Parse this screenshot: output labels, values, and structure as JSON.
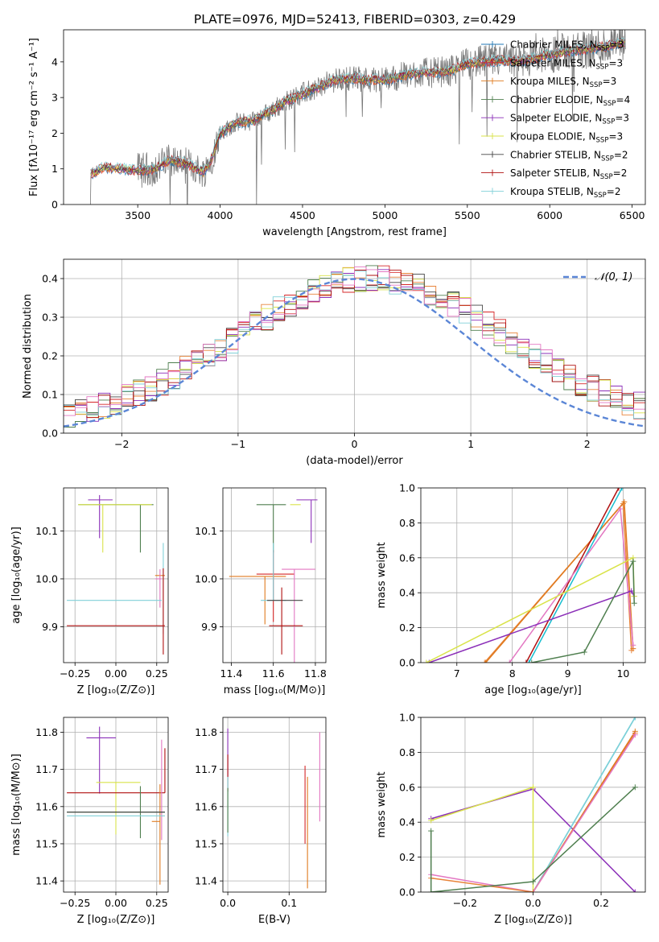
{
  "figure": {
    "title": "PLATE=0976, MJD=52413, FIBERID=0303, z=0.429"
  },
  "legend": {
    "spectrum_entries": [
      {
        "label": "Chabrier MILES, N",
        "sub": "SSP",
        "suffix": "=3",
        "color": "#1f77b4"
      },
      {
        "label": "Salpeter MILES, N",
        "sub": "SSP",
        "suffix": "=3",
        "color": "#d62728"
      },
      {
        "label": "Kroupa MILES, N",
        "sub": "SSP",
        "suffix": "=3",
        "color": "#e07b20"
      },
      {
        "label": "Chabrier ELODIE, N",
        "sub": "SSP",
        "suffix": "=4",
        "color": "#4f7f4f"
      },
      {
        "label": "Salpeter ELODIE, N",
        "sub": "SSP",
        "suffix": "=3",
        "color": "#8b2fb8"
      },
      {
        "label": "Kroupa ELODIE, N",
        "sub": "SSP",
        "suffix": "=3",
        "color": "#d9e34a"
      },
      {
        "label": "Chabrier STELIB, N",
        "sub": "SSP",
        "suffix": "=2",
        "color": "#444444"
      },
      {
        "label": "Salpeter STELIB, N",
        "sub": "SSP",
        "suffix": "=2",
        "color": "#b01010"
      },
      {
        "label": "Kroupa STELIB, N",
        "sub": "SSP",
        "suffix": "=2",
        "color": "#80d0d8"
      }
    ],
    "normal_label": "𝒩(0, 1)",
    "normal_color": "#5b86d6"
  },
  "series_colors": [
    "#e8843a",
    "#d62728",
    "#e07b20",
    "#4f7f4f",
    "#8b2fb8",
    "#d9e34a",
    "#444444",
    "#b01010",
    "#80d0d8",
    "#e377c2",
    "#17becf"
  ],
  "chart_data": [
    {
      "id": "spectrum",
      "type": "line",
      "xlabel": "wavelength [Angstrom, rest frame]",
      "ylabel": "Flux [fλ10⁻¹⁷ erg cm⁻² s⁻¹ A⁻¹]",
      "xlim": [
        3050,
        6580
      ],
      "ylim": [
        0,
        4.9
      ],
      "xticks": [
        "3500",
        "4000",
        "4500",
        "5000",
        "5500",
        "6000",
        "6500"
      ],
      "xtick_values": [
        3500,
        4000,
        4500,
        5000,
        5500,
        6000,
        6500
      ],
      "yticks": [
        "0",
        "1",
        "2",
        "3",
        "4"
      ],
      "ytick_values": [
        0,
        1,
        2,
        3,
        4
      ],
      "grid": false,
      "legend_position": "top-right",
      "model_continuum": {
        "x": [
          3210,
          3300,
          3400,
          3500,
          3600,
          3700,
          3800,
          3900,
          3950,
          4000,
          4100,
          4200,
          4300,
          4400,
          4500,
          4600,
          4700,
          4800,
          4900,
          5000,
          5100,
          5200,
          5300,
          5400,
          5500,
          5600,
          5700,
          5800,
          5900,
          6000,
          6100,
          6200,
          6300,
          6400,
          6450
        ],
        "y": [
          0.85,
          1.05,
          1.0,
          0.95,
          1.0,
          1.25,
          1.15,
          0.9,
          1.3,
          2.0,
          2.3,
          2.35,
          2.6,
          2.9,
          3.1,
          3.3,
          3.5,
          3.55,
          3.5,
          3.5,
          3.6,
          3.7,
          3.7,
          3.75,
          3.95,
          4.0,
          4.05,
          4.0,
          4.1,
          4.2,
          4.3,
          4.35,
          4.4,
          4.5,
          4.55
        ]
      }
    },
    {
      "id": "residuals",
      "type": "line",
      "xlabel": "(data-model)/error",
      "ylabel": "Normed distribution",
      "xlim": [
        -2.5,
        2.5
      ],
      "ylim": [
        0,
        0.45
      ],
      "xticks": [
        "−2",
        "−1",
        "0",
        "1",
        "2"
      ],
      "xtick_values": [
        -2,
        -1,
        0,
        1,
        2
      ],
      "yticks": [
        "0.0",
        "0.1",
        "0.2",
        "0.3",
        "0.4"
      ],
      "ytick_values": [
        0,
        0.1,
        0.2,
        0.3,
        0.4
      ],
      "grid": true,
      "legend_position": "top-right",
      "normal_mu": 0,
      "normal_sigma": 1,
      "histogram_bins": [
        -2.5,
        2.5,
        50
      ]
    },
    {
      "id": "age_vs_Z",
      "type": "scatter",
      "xlabel": "Z [log₁₀(Z/Z⊙)]",
      "ylabel": "age  [log₁₀(age/yr)]",
      "xlim": [
        -0.32,
        0.32
      ],
      "ylim": [
        9.825,
        10.19
      ],
      "xticks": [
        "−0.25",
        "0.00",
        "0.25"
      ],
      "xtick_values": [
        -0.25,
        0,
        0.25
      ],
      "yticks": [
        "9.9",
        "10.0",
        "10.1"
      ],
      "ytick_values": [
        9.9,
        10.0,
        10.1
      ],
      "grid": true,
      "points": [
        {
          "x": -0.1,
          "y": 10.165,
          "xl": 0.07,
          "xh": 0.08,
          "yl": 0.08,
          "yh": 0.01,
          "c": 4
        },
        {
          "x": 0.15,
          "y": 10.155,
          "xl": 0.38,
          "xh": 0.08,
          "yl": 0.1,
          "yh": 0.0,
          "c": 3
        },
        {
          "x": -0.08,
          "y": 10.155,
          "xl": 0.15,
          "xh": 0.3,
          "yl": 0.1,
          "yh": 0.0,
          "c": 5
        },
        {
          "x": 0.28,
          "y": 10.007,
          "xl": 0.04,
          "xh": 0.02,
          "yl": 0.0,
          "yh": 0.0,
          "c": 2
        },
        {
          "x": 0.27,
          "y": 10.0,
          "xl": 0.03,
          "xh": 0.01,
          "yl": 0.06,
          "yh": 0.02,
          "c": 9
        },
        {
          "x": 0.0,
          "y": 9.955,
          "xl": 0.3,
          "xh": 0.28,
          "yl": 0.0,
          "yh": 0.0,
          "c": 8
        },
        {
          "x": 0.29,
          "y": 9.955,
          "xl": 0.0,
          "xh": 0.0,
          "yl": 0.07,
          "yh": 0.12,
          "c": 8
        },
        {
          "x": 0.0,
          "y": 9.902,
          "xl": 0.3,
          "xh": 0.3,
          "yl": 0.0,
          "yh": 0.0,
          "c": 7
        },
        {
          "x": 0.29,
          "y": 9.902,
          "xl": 0.0,
          "xh": 0.0,
          "yl": 0.06,
          "yh": 0.12,
          "c": 7
        }
      ]
    },
    {
      "id": "age_vs_mass",
      "type": "scatter",
      "xlabel": "mass [log₁₀(M/M⊙)]",
      "xlim": [
        11.36,
        11.85
      ],
      "ylim": [
        9.825,
        10.19
      ],
      "xticks": [
        "11.4",
        "11.6",
        "11.8"
      ],
      "xtick_values": [
        11.4,
        11.6,
        11.8
      ],
      "yticks": [
        "9.9",
        "10.0",
        "10.1"
      ],
      "ytick_values": [
        9.9,
        10.0,
        10.1
      ],
      "grid": true,
      "points": [
        {
          "x": 11.78,
          "y": 10.165,
          "xl": 0.07,
          "xh": 0.03,
          "yl": 0.09,
          "yh": 0.0,
          "c": 4
        },
        {
          "x": 11.6,
          "y": 10.155,
          "xl": 0.08,
          "xh": 0.06,
          "yl": 0.1,
          "yh": 0.0,
          "c": 3
        },
        {
          "x": 11.68,
          "y": 10.155,
          "xl": 0.0,
          "xh": 0.05,
          "yl": 0.0,
          "yh": 0.0,
          "c": 5
        },
        {
          "x": 11.56,
          "y": 10.005,
          "xl": 0.17,
          "xh": 0.1,
          "yl": 0.1,
          "yh": 0.0,
          "c": 2
        },
        {
          "x": 11.6,
          "y": 10.01,
          "xl": 0.08,
          "xh": 0.1,
          "yl": 0.1,
          "yh": 0.05,
          "c": 1
        },
        {
          "x": 11.7,
          "y": 10.02,
          "xl": 0.06,
          "xh": 0.1,
          "yl": 0.2,
          "yh": 0.0,
          "c": 9
        },
        {
          "x": 11.6,
          "y": 9.955,
          "xl": 0.06,
          "xh": 0.06,
          "yl": 0.0,
          "yh": 0.12,
          "c": 8
        },
        {
          "x": 11.65,
          "y": 9.955,
          "xl": 0.08,
          "xh": 0.09,
          "yl": 0.0,
          "yh": 0.0,
          "c": 6
        },
        {
          "x": 11.64,
          "y": 9.902,
          "xl": 0.06,
          "xh": 0.1,
          "yl": 0.06,
          "yh": 0.08,
          "c": 7
        }
      ]
    },
    {
      "id": "weight_vs_age",
      "type": "line",
      "xlabel": "age  [log₁₀(age/yr)]",
      "ylabel": "mass weight",
      "xlim": [
        6.35,
        10.4
      ],
      "ylim": [
        0,
        1.0
      ],
      "xticks": [
        "7",
        "8",
        "9",
        "10"
      ],
      "xtick_values": [
        7,
        8,
        9,
        10
      ],
      "yticks": [
        "0.0",
        "0.2",
        "0.4",
        "0.6",
        "0.8",
        "1.0"
      ],
      "ytick_values": [
        0,
        0.2,
        0.4,
        0.6,
        0.8,
        1.0
      ],
      "grid": true,
      "series": [
        {
          "x": [
            7.5,
            10.0,
            10.15
          ],
          "y": [
            0.0,
            0.91,
            0.07
          ],
          "c": 0
        },
        {
          "x": [
            7.52,
            10.02,
            10.18
          ],
          "y": [
            0.0,
            0.92,
            0.08
          ],
          "c": 2
        },
        {
          "x": [
            8.25,
            9.92
          ],
          "y": [
            0.0,
            1.0
          ],
          "c": 7
        },
        {
          "x": [
            8.3,
            9.98
          ],
          "y": [
            0.0,
            1.0
          ],
          "c": 10
        },
        {
          "x": [
            7.95,
            9.95,
            10.18
          ],
          "y": [
            0.0,
            0.88,
            0.1
          ],
          "c": 9
        },
        {
          "x": [
            6.5,
            10.15,
            10.2
          ],
          "y": [
            0.0,
            0.41,
            0.38
          ],
          "c": 4
        },
        {
          "x": [
            6.45,
            10.18,
            10.2
          ],
          "y": [
            0.0,
            0.6,
            0.38
          ],
          "c": 5
        },
        {
          "x": [
            8.35,
            9.3,
            10.18,
            10.2
          ],
          "y": [
            0.0,
            0.06,
            0.58,
            0.34
          ],
          "c": 3
        }
      ]
    },
    {
      "id": "mass_vs_Z",
      "type": "scatter",
      "xlabel": "Z [log₁₀(Z/Z⊙)]",
      "ylabel": "mass [log₁₀(M/M⊙)]",
      "xlim": [
        -0.32,
        0.32
      ],
      "ylim": [
        11.37,
        11.84
      ],
      "xticks": [
        "−0.25",
        "0.00",
        "0.25"
      ],
      "xtick_values": [
        -0.25,
        0,
        0.25
      ],
      "yticks": [
        "11.4",
        "11.5",
        "11.6",
        "11.7",
        "11.8"
      ],
      "ytick_values": [
        11.4,
        11.5,
        11.6,
        11.7,
        11.8
      ],
      "grid": true,
      "points": [
        {
          "x": -0.1,
          "y": 11.785,
          "xl": 0.08,
          "xh": 0.1,
          "yl": 0.15,
          "yh": 0.03,
          "c": 4
        },
        {
          "x": 0.0,
          "y": 11.665,
          "xl": 0.12,
          "xh": 0.15,
          "yl": 0.14,
          "yh": 0.0,
          "c": 5
        },
        {
          "x": 0.0,
          "y": 11.637,
          "xl": 0.3,
          "xh": 0.3,
          "yl": 0.0,
          "yh": 0.0,
          "c": 7
        },
        {
          "x": 0.3,
          "y": 11.637,
          "xl": 0.0,
          "xh": 0.0,
          "yl": 0.0,
          "yh": 0.12,
          "c": 7
        },
        {
          "x": 0.27,
          "y": 11.56,
          "xl": 0.05,
          "xh": 0.0,
          "yl": 0.17,
          "yh": 0.1,
          "c": 2
        },
        {
          "x": 0.28,
          "y": 11.58,
          "xl": 0.0,
          "xh": 0.0,
          "yl": 0.07,
          "yh": 0.2,
          "c": 9
        },
        {
          "x": 0.15,
          "y": 11.585,
          "xl": 0.45,
          "xh": 0.15,
          "yl": 0.07,
          "yh": 0.07,
          "c": 3
        },
        {
          "x": 0.0,
          "y": 11.585,
          "xl": 0.3,
          "xh": 0.3,
          "yl": 0.0,
          "yh": 0.0,
          "c": 6
        },
        {
          "x": 0.0,
          "y": 11.575,
          "xl": 0.3,
          "xh": 0.3,
          "yl": 0.0,
          "yh": 0.0,
          "c": 8
        }
      ]
    },
    {
      "id": "mass_vs_ebv",
      "type": "scatter",
      "xlabel": "E(B-V)",
      "xlim": [
        -0.008,
        0.16
      ],
      "ylim": [
        11.37,
        11.84
      ],
      "xticks": [
        "0.0",
        "0.1"
      ],
      "xtick_values": [
        0,
        0.1
      ],
      "yticks": [
        "11.4",
        "11.5",
        "11.6",
        "11.7",
        "11.8"
      ],
      "ytick_values": [
        11.4,
        11.5,
        11.6,
        11.7,
        11.8
      ],
      "grid": true,
      "points": [
        {
          "x": 0.0,
          "y": 11.75,
          "xl": 0.0,
          "xh": 0.0,
          "yl": 0.07,
          "yh": 0.06,
          "c": 4
        },
        {
          "x": 0.0,
          "y": 11.7,
          "xl": 0.0,
          "xh": 0.0,
          "yl": 0.06,
          "yh": 0.04,
          "c": 7
        },
        {
          "x": 0.0,
          "y": 11.6,
          "xl": 0.0,
          "xh": 0.0,
          "yl": 0.08,
          "yh": 0.08,
          "c": 8
        },
        {
          "x": 0.0,
          "y": 11.58,
          "xl": 0.0,
          "xh": 0.0,
          "yl": 0.05,
          "yh": 0.07,
          "c": 3
        },
        {
          "x": 0.126,
          "y": 11.6,
          "xl": 0.0,
          "xh": 0.0,
          "yl": 0.1,
          "yh": 0.11,
          "c": 1
        },
        {
          "x": 0.13,
          "y": 11.58,
          "xl": 0.0,
          "xh": 0.0,
          "yl": 0.2,
          "yh": 0.1,
          "c": 2
        },
        {
          "x": 0.15,
          "y": 11.68,
          "xl": 0.0,
          "xh": 0.0,
          "yl": 0.12,
          "yh": 0.12,
          "c": 9
        }
      ]
    },
    {
      "id": "weight_vs_Z",
      "type": "line",
      "xlabel": "Z [log₁₀(Z/Z⊙)]",
      "ylabel": "mass weight",
      "xlim": [
        -0.33,
        0.33
      ],
      "ylim": [
        0,
        1.0
      ],
      "xticks": [
        "−0.2",
        "0.0",
        "0.2"
      ],
      "xtick_values": [
        -0.2,
        0,
        0.2
      ],
      "yticks": [
        "0.0",
        "0.2",
        "0.4",
        "0.6",
        "0.8",
        "1.0"
      ],
      "ytick_values": [
        0,
        0.2,
        0.4,
        0.6,
        0.8,
        1.0
      ],
      "grid": true,
      "series": [
        {
          "x": [
            -0.3,
            0.0,
            0.3
          ],
          "y": [
            0.42,
            0.59,
            0.0
          ],
          "c": 4
        },
        {
          "x": [
            -0.3,
            0.0,
            0.0
          ],
          "y": [
            0.41,
            0.6,
            0.0
          ],
          "c": 5
        },
        {
          "x": [
            0.0,
            0.3
          ],
          "y": [
            0.0,
            1.0
          ],
          "c": 10
        },
        {
          "x": [
            0.0,
            0.3
          ],
          "y": [
            0.0,
            1.0
          ],
          "c": 8
        },
        {
          "x": [
            0.0,
            0.3
          ],
          "y": [
            0.0,
            0.91
          ],
          "c": 0
        },
        {
          "x": [
            0.0,
            0.3
          ],
          "y": [
            0.0,
            0.92
          ],
          "c": 2
        },
        {
          "x": [
            0.0,
            0.3
          ],
          "y": [
            0.0,
            0.9
          ],
          "c": 9
        },
        {
          "x": [
            -0.3,
            0.0
          ],
          "y": [
            0.1,
            0.0
          ],
          "c": 9
        },
        {
          "x": [
            -0.3,
            0.0
          ],
          "y": [
            0.08,
            0.0
          ],
          "c": 0
        },
        {
          "x": [
            -0.3,
            -0.3,
            0.0,
            0.3
          ],
          "y": [
            0.35,
            0.0,
            0.06,
            0.6
          ],
          "c": 3
        }
      ]
    }
  ]
}
